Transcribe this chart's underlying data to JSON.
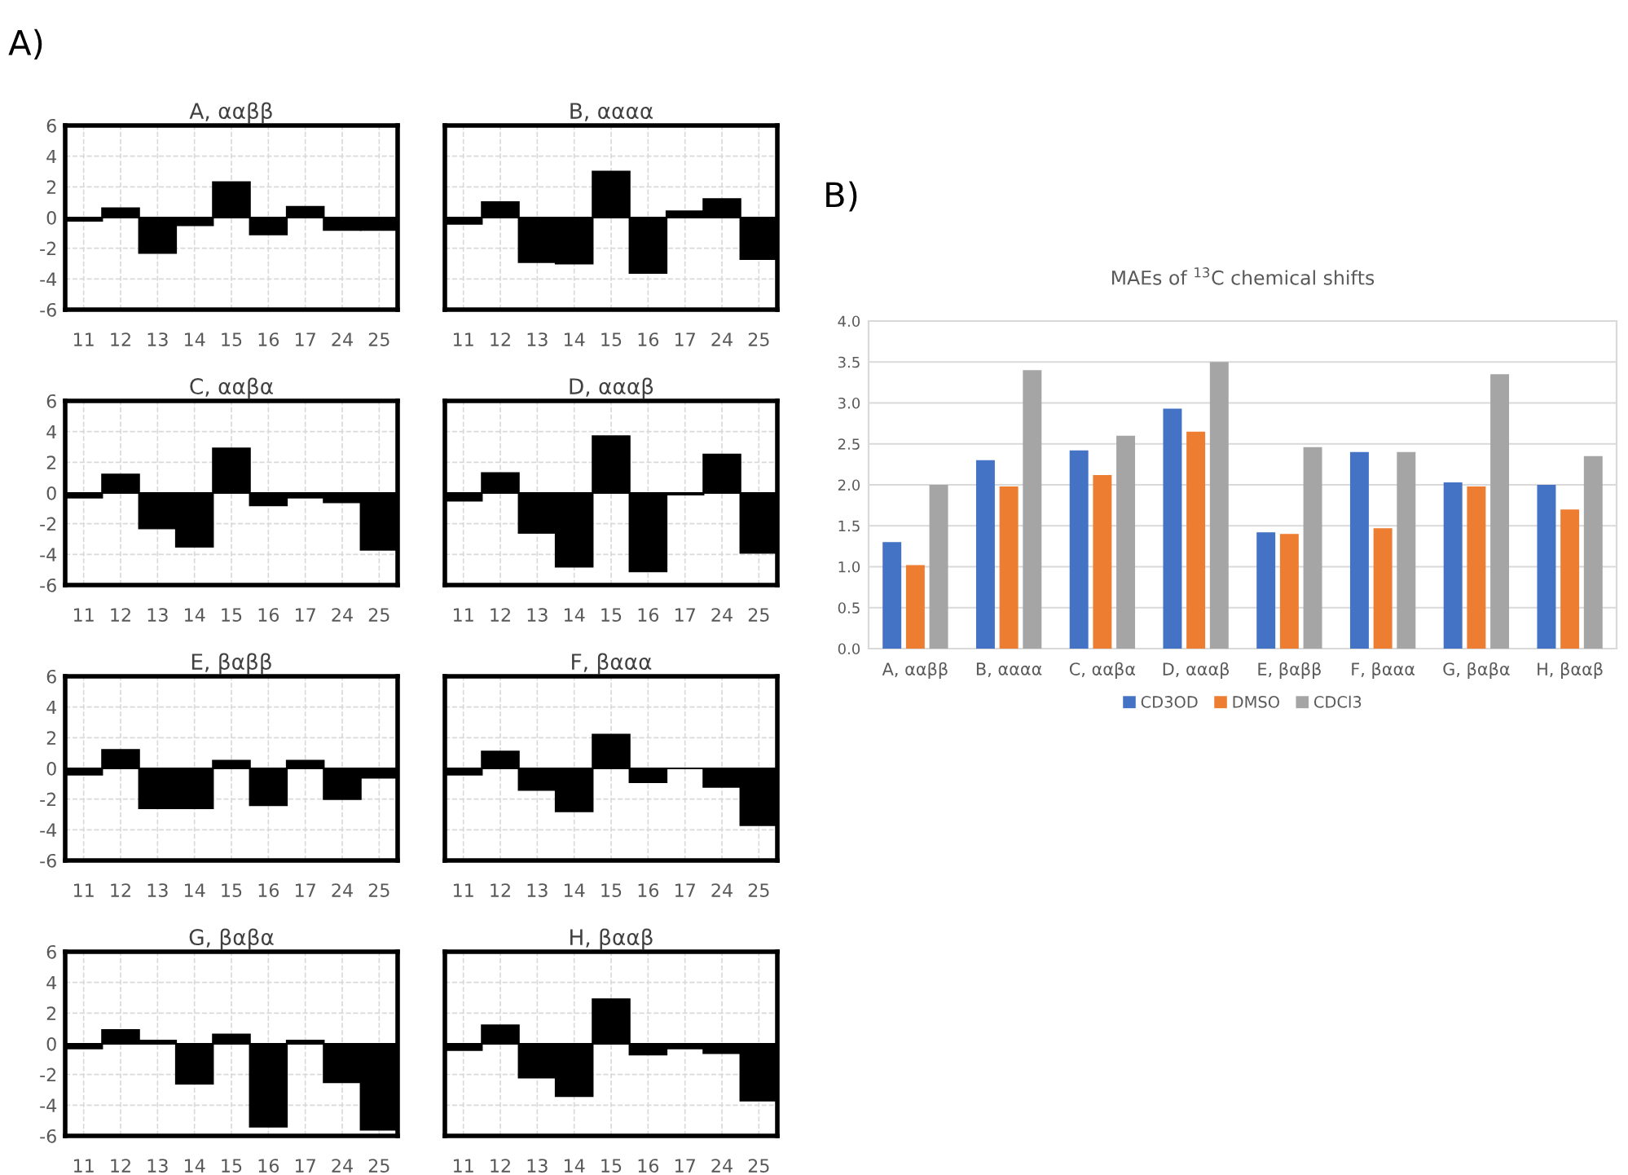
{
  "chart_data": [
    {
      "type": "bar",
      "title": "A, ααββ",
      "annotations": [
        "A)"
      ],
      "categories": [
        "11",
        "12",
        "13",
        "14",
        "15",
        "16",
        "17",
        "24",
        "25"
      ],
      "values": [
        -0.2,
        0.6,
        -2.3,
        -0.5,
        2.3,
        -1.1,
        0.7,
        -0.8,
        -0.8
      ],
      "color": "#000000",
      "ylim": [
        -6,
        6
      ],
      "yticks": [
        -6,
        -4,
        -2,
        0,
        2,
        4,
        6
      ],
      "grid": true
    },
    {
      "type": "bar",
      "title": "B, αααα",
      "categories": [
        "11",
        "12",
        "13",
        "14",
        "15",
        "16",
        "17",
        "24",
        "25"
      ],
      "values": [
        -0.4,
        1.0,
        -2.9,
        -3.0,
        3.0,
        -3.6,
        0.4,
        1.2,
        -2.7
      ],
      "color": "#000000",
      "ylim": [
        -6,
        6
      ],
      "yticks": [
        -6,
        -4,
        -2,
        0,
        2,
        4,
        6
      ],
      "grid": true,
      "tick_labels": "x"
    },
    {
      "type": "bar",
      "title": "C, ααβα",
      "categories": [
        "11",
        "12",
        "13",
        "14",
        "15",
        "16",
        "17",
        "24",
        "25"
      ],
      "values": [
        -0.3,
        1.2,
        -2.3,
        -3.5,
        2.9,
        -0.8,
        -0.3,
        -0.6,
        -3.7
      ],
      "color": "#000000",
      "ylim": [
        -6,
        6
      ],
      "yticks": [
        -6,
        -4,
        -2,
        0,
        2,
        4,
        6
      ],
      "grid": true
    },
    {
      "type": "bar",
      "title": "D, αααβ",
      "categories": [
        "11",
        "12",
        "13",
        "14",
        "15",
        "16",
        "17",
        "24",
        "25"
      ],
      "values": [
        -0.5,
        1.3,
        -2.6,
        -4.8,
        3.7,
        -5.1,
        -0.1,
        2.5,
        -3.9
      ],
      "color": "#000000",
      "ylim": [
        -6,
        6
      ],
      "yticks": [
        -6,
        -4,
        -2,
        0,
        2,
        4,
        6
      ],
      "grid": true,
      "tick_labels": "x"
    },
    {
      "type": "bar",
      "title": "E, βαββ",
      "categories": [
        "11",
        "12",
        "13",
        "14",
        "15",
        "16",
        "17",
        "24",
        "25"
      ],
      "values": [
        -0.4,
        1.2,
        -2.6,
        -2.6,
        0.5,
        -2.4,
        0.5,
        -2.0,
        -0.6
      ],
      "color": "#000000",
      "ylim": [
        -6,
        6
      ],
      "yticks": [
        -6,
        -4,
        -2,
        0,
        2,
        4,
        6
      ],
      "grid": true
    },
    {
      "type": "bar",
      "title": "F, βααα",
      "categories": [
        "11",
        "12",
        "13",
        "14",
        "15",
        "16",
        "17",
        "24",
        "25"
      ],
      "values": [
        -0.4,
        1.1,
        -1.4,
        -2.8,
        2.2,
        -0.9,
        0.0,
        -1.2,
        -3.7
      ],
      "color": "#000000",
      "ylim": [
        -6,
        6
      ],
      "yticks": [
        -6,
        -4,
        -2,
        0,
        2,
        4,
        6
      ],
      "grid": true,
      "tick_labels": "x"
    },
    {
      "type": "bar",
      "title": "G, βαβα",
      "categories": [
        "11",
        "12",
        "13",
        "14",
        "15",
        "16",
        "17",
        "24",
        "25"
      ],
      "values": [
        -0.3,
        0.9,
        0.2,
        -2.6,
        0.6,
        -5.4,
        0.2,
        -2.5,
        -5.6
      ],
      "color": "#000000",
      "ylim": [
        -6,
        6
      ],
      "yticks": [
        -6,
        -4,
        -2,
        0,
        2,
        4,
        6
      ],
      "grid": true
    },
    {
      "type": "bar",
      "title": "H, βααβ",
      "categories": [
        "11",
        "12",
        "13",
        "14",
        "15",
        "16",
        "17",
        "24",
        "25"
      ],
      "values": [
        -0.4,
        1.2,
        -2.2,
        -3.4,
        2.9,
        -0.7,
        -0.3,
        -0.6,
        -3.7
      ],
      "color": "#000000",
      "ylim": [
        -6,
        6
      ],
      "yticks": [
        -6,
        -4,
        -2,
        0,
        2,
        4,
        6
      ],
      "grid": true,
      "tick_labels": "x"
    },
    {
      "type": "bar",
      "title": "MAEs of $^{13}$C chemical shifts",
      "annotations": [
        "B)"
      ],
      "categories": [
        "A, ααββ",
        "B, αααα",
        "C, ααβα",
        "D, αααβ",
        "E, βαββ",
        "F, βααα",
        "G, βαβα",
        "H, βααβ"
      ],
      "series": [
        {
          "name": "CD3OD",
          "color": "#4472c4",
          "values": [
            1.3,
            2.3,
            2.42,
            2.93,
            1.42,
            2.4,
            2.03,
            2.0
          ]
        },
        {
          "name": "DMSO",
          "color": "#ed7d31",
          "values": [
            1.02,
            1.98,
            2.12,
            2.65,
            1.4,
            1.47,
            1.98,
            1.7
          ]
        },
        {
          "name": "CDCl3",
          "color": "#a5a5a5",
          "values": [
            2.0,
            3.4,
            2.6,
            3.5,
            2.46,
            2.4,
            3.35,
            2.35
          ]
        }
      ],
      "ylim": [
        0,
        4
      ],
      "yticks": [
        {
          "value": 0,
          "label": "0.0"
        },
        {
          "value": 0.5,
          "label": "0.5"
        },
        {
          "value": 1,
          "label": "1.0"
        },
        {
          "value": 1.5,
          "label": "1.5"
        },
        {
          "value": 2,
          "label": "2.0"
        },
        {
          "value": 2.5,
          "label": "2.5"
        },
        {
          "value": 3,
          "label": "3.0"
        },
        {
          "value": 3.5,
          "label": "3.5"
        },
        {
          "value": 4,
          "label": "4.0"
        }
      ],
      "grid": "y",
      "legend": "bottom"
    }
  ]
}
